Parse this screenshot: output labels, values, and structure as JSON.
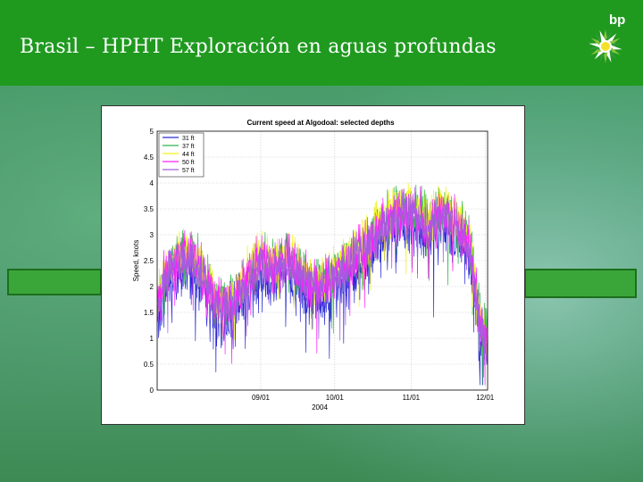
{
  "slide": {
    "title": "Brasil – HPHT Exploración en aguas profundas",
    "logo_text": "bp"
  },
  "colors": {
    "header": "#1f9a1f",
    "bar": "#3aa63a"
  },
  "chart_data": {
    "type": "line",
    "title": "Current speed at Algodoal: selected depths",
    "xlabel": "2004",
    "ylabel": "Speed, knots",
    "ylim": [
      0,
      5
    ],
    "yticks": [
      "0",
      "0.5",
      "1",
      "1.5",
      "2",
      "2.5",
      "3",
      "3.5",
      "4",
      "4.5",
      "5"
    ],
    "xlim": [
      "2004-07-21",
      "2004-12-02"
    ],
    "xticks": [
      {
        "label": "09/01",
        "date": "2004-09-01"
      },
      {
        "label": "10/01",
        "date": "2004-10-01"
      },
      {
        "label": "11/01",
        "date": "2004-11-01"
      },
      {
        "label": "12/01",
        "date": "2004-12-01"
      }
    ],
    "grid": true,
    "legend_position": "top-left",
    "series": [
      {
        "name": "31 ft",
        "color": "#2b2bd6",
        "offset": -0.25,
        "noise": 0.55
      },
      {
        "name": "37 ft",
        "color": "#2fb34a",
        "offset": 0.05,
        "noise": 0.45
      },
      {
        "name": "44 ft",
        "color": "#f2f21a",
        "offset": 0.12,
        "noise": 0.4
      },
      {
        "name": "50 ft",
        "color": "#ff1fff",
        "offset": 0.0,
        "noise": 0.45
      },
      {
        "name": "57 ft",
        "color": "#a45de0",
        "offset": -0.05,
        "noise": 0.4
      }
    ],
    "trend": [
      {
        "date": "2004-07-21",
        "y": 1.5
      },
      {
        "date": "2004-07-24",
        "y": 2.2
      },
      {
        "date": "2004-07-30",
        "y": 2.5
      },
      {
        "date": "2004-08-04",
        "y": 2.6
      },
      {
        "date": "2004-08-08",
        "y": 2.3
      },
      {
        "date": "2004-08-13",
        "y": 1.7
      },
      {
        "date": "2004-08-17",
        "y": 1.6
      },
      {
        "date": "2004-08-22",
        "y": 1.8
      },
      {
        "date": "2004-08-27",
        "y": 2.2
      },
      {
        "date": "2004-09-01",
        "y": 2.5
      },
      {
        "date": "2004-09-06",
        "y": 2.4
      },
      {
        "date": "2004-09-12",
        "y": 2.5
      },
      {
        "date": "2004-09-18",
        "y": 2.2
      },
      {
        "date": "2004-09-24",
        "y": 2.0
      },
      {
        "date": "2004-10-01",
        "y": 2.2
      },
      {
        "date": "2004-10-07",
        "y": 2.5
      },
      {
        "date": "2004-10-13",
        "y": 2.7
      },
      {
        "date": "2004-10-19",
        "y": 3.1
      },
      {
        "date": "2004-10-26",
        "y": 3.4
      },
      {
        "date": "2004-11-02",
        "y": 3.5
      },
      {
        "date": "2004-11-08",
        "y": 3.2
      },
      {
        "date": "2004-11-14",
        "y": 3.4
      },
      {
        "date": "2004-11-20",
        "y": 3.2
      },
      {
        "date": "2004-11-25",
        "y": 2.7
      },
      {
        "date": "2004-11-29",
        "y": 1.3
      },
      {
        "date": "2004-12-02",
        "y": 0.9
      }
    ]
  }
}
